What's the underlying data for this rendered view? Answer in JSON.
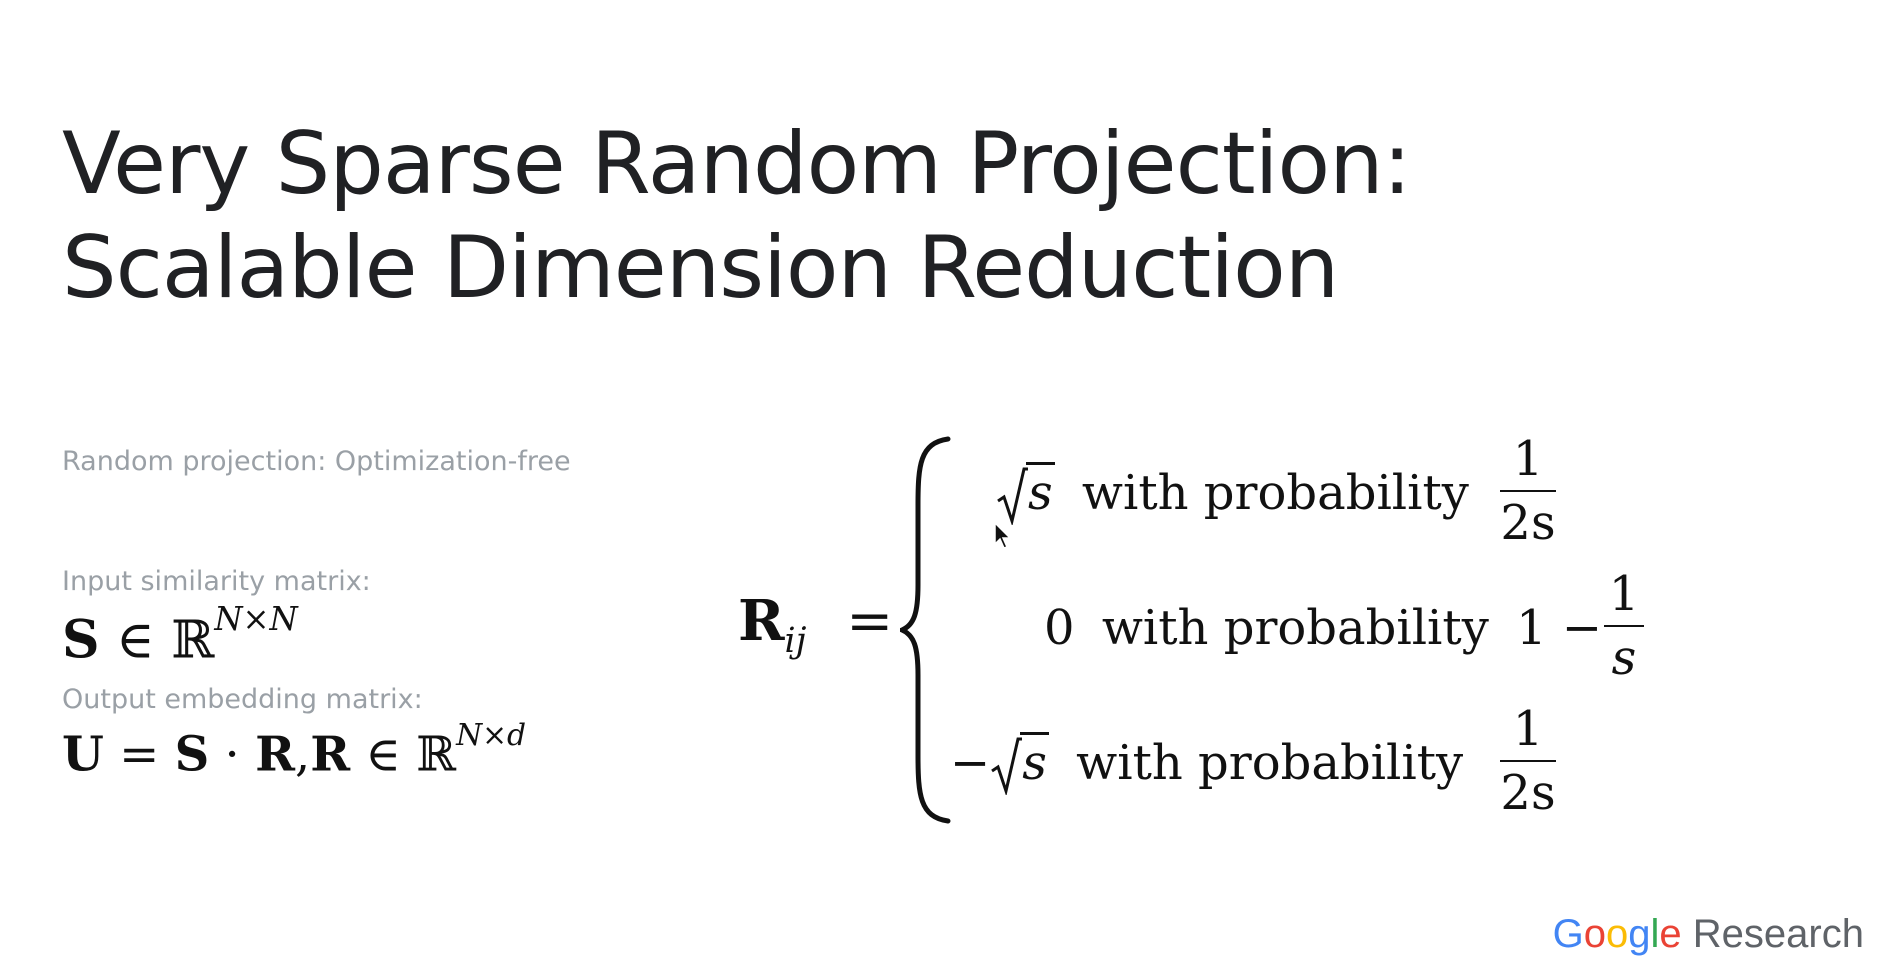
{
  "slide": {
    "title_line1": "Very Sparse Random Projection:",
    "title_line2": "Scalable Dimension Reduction",
    "labels": {
      "random_projection": "Random projection: Optimization-free",
      "input_similarity": "Input similarity matrix:",
      "output_embedding": "Output embedding matrix:"
    },
    "eq_s": {
      "S": "S",
      "in": "∈",
      "R": "ℝ",
      "exp": "N×N"
    },
    "eq_u": {
      "U": "U",
      "eq": "=",
      "S": "S",
      "dot": "·",
      "R1": "R",
      "comma": ",",
      "R2": "R",
      "in": "∈",
      "RR": "ℝ",
      "exp": "N×d"
    },
    "piecewise": {
      "lhs": "R",
      "sub": "ij",
      "eq": "=",
      "case1": {
        "sign": "",
        "value": "s",
        "text": "with probability",
        "num": "1",
        "den": "2s"
      },
      "case2": {
        "value": "0",
        "text": "with probability",
        "prefix": "1 −",
        "num": "1",
        "den": "s"
      },
      "case3": {
        "sign": "−",
        "value": "s",
        "text": "with probability",
        "num": "1",
        "den": "2s"
      }
    }
  },
  "footer": {
    "logo_letters": [
      "G",
      "o",
      "o",
      "g",
      "l",
      "e"
    ],
    "research": "Research"
  }
}
